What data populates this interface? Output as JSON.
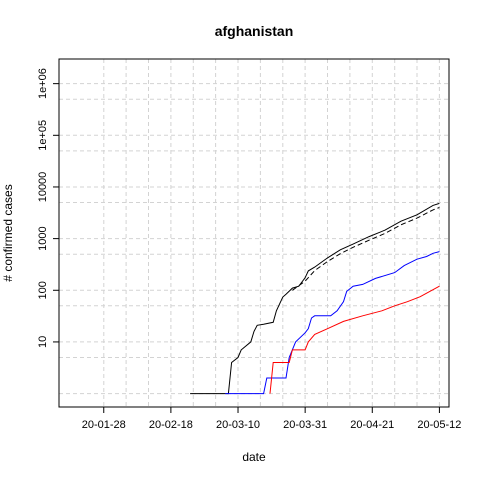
{
  "chart_data": {
    "type": "line",
    "title": "afghanistan",
    "xlabel": "date",
    "ylabel": "# confirmed cases",
    "x_tick_labels": [
      "20-01-28",
      "20-02-18",
      "20-03-10",
      "20-03-31",
      "20-04-21",
      "20-05-12"
    ],
    "x_ticks": [
      "2020-01-28",
      "2020-02-18",
      "2020-03-10",
      "2020-03-31",
      "2020-04-21",
      "2020-05-12"
    ],
    "x_minor_ticks": [
      "2020-02-04",
      "2020-02-11",
      "2020-02-25",
      "2020-03-03",
      "2020-03-17",
      "2020-03-24",
      "2020-04-07",
      "2020-04-14",
      "2020-04-28",
      "2020-05-05"
    ],
    "y_scale": "log",
    "y_tick_labels": [
      "10",
      "100",
      "1000",
      "10000",
      "1e+05",
      "1e+06"
    ],
    "y_ticks": [
      10,
      100,
      1000,
      10000,
      100000,
      1000000
    ],
    "xlim": [
      "2020-01-14",
      "2020-05-15"
    ],
    "ylim": [
      0.55,
      3000000
    ],
    "grid": true,
    "series": [
      {
        "color": "#000000",
        "dash": "solid",
        "points": [
          [
            "2020-02-24",
            1
          ],
          [
            "2020-03-07",
            1
          ],
          [
            "2020-03-08",
            4
          ],
          [
            "2020-03-10",
            5
          ],
          [
            "2020-03-11",
            7
          ],
          [
            "2020-03-14",
            10
          ],
          [
            "2020-03-15",
            16
          ],
          [
            "2020-03-16",
            21
          ],
          [
            "2020-03-18",
            22
          ],
          [
            "2020-03-21",
            24
          ],
          [
            "2020-03-22",
            40
          ],
          [
            "2020-03-24",
            74
          ],
          [
            "2020-03-25",
            84
          ],
          [
            "2020-03-27",
            110
          ],
          [
            "2020-03-29",
            120
          ],
          [
            "2020-03-31",
            174
          ],
          [
            "2020-04-01",
            237
          ],
          [
            "2020-04-03",
            281
          ],
          [
            "2020-04-07",
            423
          ],
          [
            "2020-04-11",
            607
          ],
          [
            "2020-04-15",
            784
          ],
          [
            "2020-04-20",
            1092
          ],
          [
            "2020-04-25",
            1463
          ],
          [
            "2020-04-30",
            2171
          ],
          [
            "2020-05-05",
            2894
          ],
          [
            "2020-05-10",
            4402
          ],
          [
            "2020-05-12",
            4800
          ]
        ]
      },
      {
        "color": "#000000",
        "dash": "dashed",
        "points": [
          [
            "2020-03-27",
            100
          ],
          [
            "2020-03-31",
            150
          ],
          [
            "2020-04-03",
            240
          ],
          [
            "2020-04-07",
            360
          ],
          [
            "2020-04-11",
            510
          ],
          [
            "2020-04-15",
            680
          ],
          [
            "2020-04-20",
            930
          ],
          [
            "2020-04-25",
            1260
          ],
          [
            "2020-04-30",
            1850
          ],
          [
            "2020-05-05",
            2500
          ],
          [
            "2020-05-10",
            3600
          ],
          [
            "2020-05-12",
            4000
          ]
        ]
      },
      {
        "color": "#0000ff",
        "dash": "solid",
        "points": [
          [
            "2020-03-06",
            1
          ],
          [
            "2020-03-18",
            1
          ],
          [
            "2020-03-19",
            2
          ],
          [
            "2020-03-25",
            2
          ],
          [
            "2020-03-26",
            5
          ],
          [
            "2020-03-28",
            10
          ],
          [
            "2020-03-31",
            15
          ],
          [
            "2020-04-01",
            18
          ],
          [
            "2020-04-02",
            29
          ],
          [
            "2020-04-03",
            32
          ],
          [
            "2020-04-08",
            32
          ],
          [
            "2020-04-10",
            40
          ],
          [
            "2020-04-12",
            60
          ],
          [
            "2020-04-13",
            95
          ],
          [
            "2020-04-15",
            120
          ],
          [
            "2020-04-18",
            130
          ],
          [
            "2020-04-22",
            170
          ],
          [
            "2020-04-28",
            220
          ],
          [
            "2020-05-01",
            300
          ],
          [
            "2020-05-05",
            400
          ],
          [
            "2020-05-08",
            450
          ],
          [
            "2020-05-10",
            520
          ],
          [
            "2020-05-12",
            560
          ]
        ]
      },
      {
        "color": "#ff0000",
        "dash": "solid",
        "points": [
          [
            "2020-03-20",
            1
          ],
          [
            "2020-03-21",
            4
          ],
          [
            "2020-03-26",
            4
          ],
          [
            "2020-03-27",
            7
          ],
          [
            "2020-03-31",
            7
          ],
          [
            "2020-04-01",
            10
          ],
          [
            "2020-04-03",
            14
          ],
          [
            "2020-04-07",
            18
          ],
          [
            "2020-04-12",
            25
          ],
          [
            "2020-04-18",
            32
          ],
          [
            "2020-04-24",
            40
          ],
          [
            "2020-04-28",
            50
          ],
          [
            "2020-05-02",
            60
          ],
          [
            "2020-05-06",
            75
          ],
          [
            "2020-05-09",
            95
          ],
          [
            "2020-05-12",
            120
          ]
        ]
      }
    ]
  }
}
